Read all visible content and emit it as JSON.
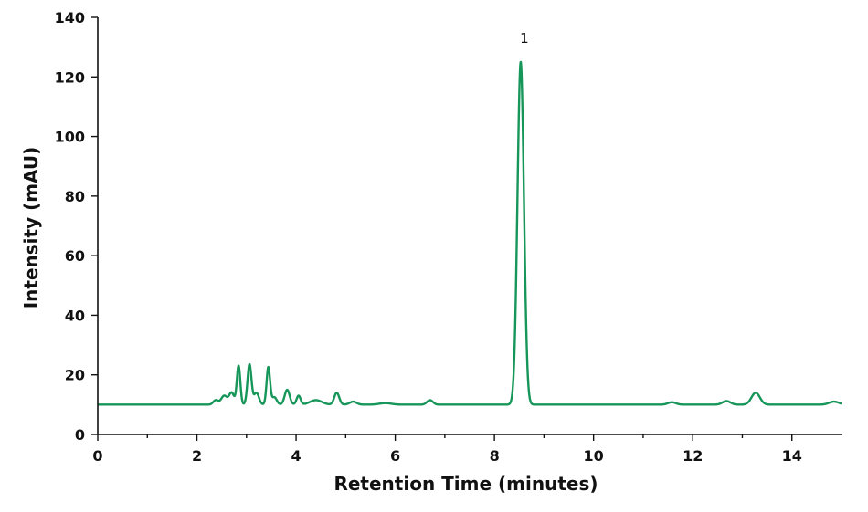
{
  "chart_data": {
    "type": "line",
    "xlabel": "Retention Time (minutes)",
    "ylabel": "Intensity (mAU)",
    "xlim": [
      0,
      15
    ],
    "ylim": [
      0,
      140
    ],
    "x_major_ticks": [
      0,
      2,
      4,
      6,
      8,
      10,
      12,
      14
    ],
    "x_tick_labels": [
      "0",
      "2",
      "4",
      "6",
      "8",
      "10",
      "12",
      "14"
    ],
    "x_minor_ticks": [
      1,
      3,
      5,
      7,
      9,
      11,
      13
    ],
    "y_ticks": [
      0,
      20,
      40,
      60,
      80,
      100,
      120,
      140
    ],
    "y_tick_labels": [
      "0",
      "20",
      "40",
      "60",
      "80",
      "100",
      "120",
      "140"
    ],
    "grid": false,
    "line_color": "#17965a",
    "baseline": 10,
    "peaks": [
      {
        "rt": 2.38,
        "height": 1.5,
        "width": 0.05
      },
      {
        "rt": 2.55,
        "height": 3.0,
        "width": 0.06
      },
      {
        "rt": 2.7,
        "height": 4.0,
        "width": 0.05
      },
      {
        "rt": 2.84,
        "height": 13.0,
        "width": 0.035
      },
      {
        "rt": 3.06,
        "height": 13.5,
        "width": 0.04
      },
      {
        "rt": 3.2,
        "height": 4.0,
        "width": 0.05
      },
      {
        "rt": 3.44,
        "height": 12.5,
        "width": 0.035
      },
      {
        "rt": 3.56,
        "height": 2.5,
        "width": 0.05
      },
      {
        "rt": 3.82,
        "height": 5.0,
        "width": 0.05
      },
      {
        "rt": 4.05,
        "height": 3.0,
        "width": 0.04
      },
      {
        "rt": 4.4,
        "height": 1.5,
        "width": 0.12
      },
      {
        "rt": 4.82,
        "height": 4.0,
        "width": 0.05
      },
      {
        "rt": 5.15,
        "height": 1.0,
        "width": 0.07
      },
      {
        "rt": 5.8,
        "height": 0.5,
        "width": 0.12
      },
      {
        "rt": 6.7,
        "height": 1.5,
        "width": 0.06
      },
      {
        "rt": 8.53,
        "height": 115.0,
        "width": 0.065
      },
      {
        "rt": 11.58,
        "height": 0.8,
        "width": 0.08
      },
      {
        "rt": 12.68,
        "height": 1.2,
        "width": 0.08
      },
      {
        "rt": 13.27,
        "height": 4.0,
        "width": 0.085
      },
      {
        "rt": 14.85,
        "height": 1.0,
        "width": 0.1
      }
    ],
    "annotations": [
      {
        "text": "1",
        "x": 8.53,
        "y": 133
      }
    ]
  }
}
